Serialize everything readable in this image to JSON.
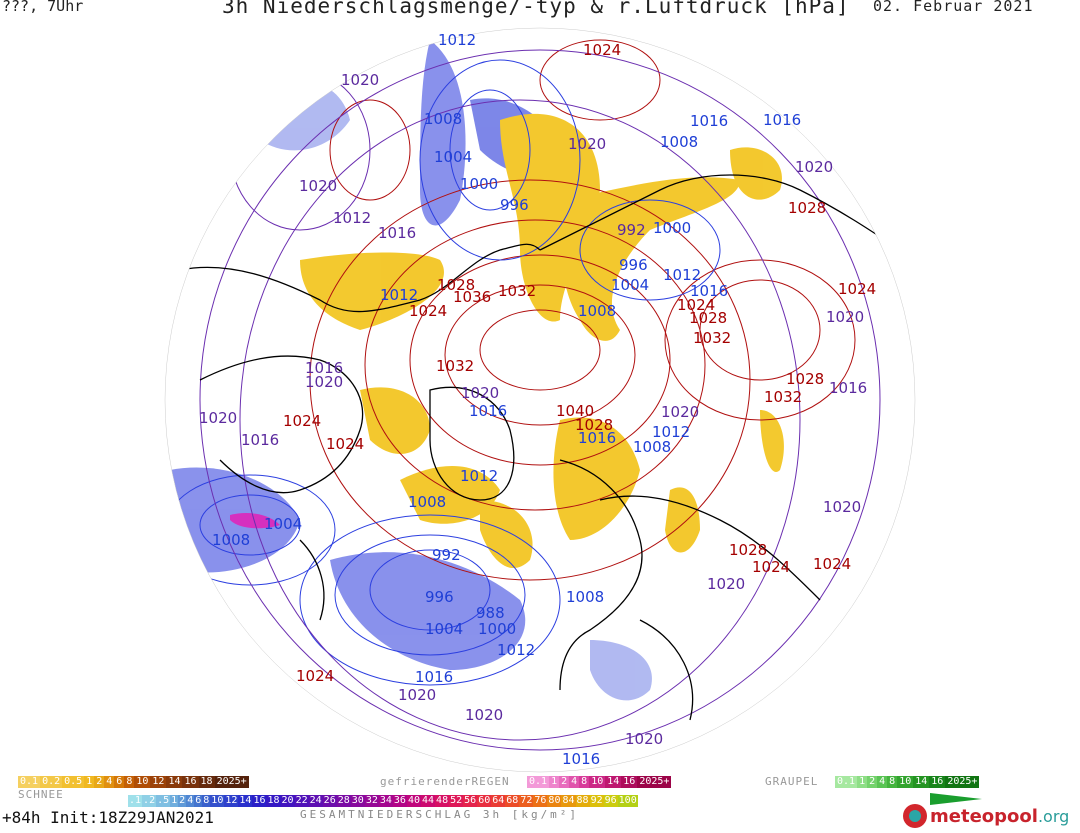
{
  "header": {
    "run_label": "???, 7Uhr",
    "title": "3h Niederschlagsmenge/-typ & r.Luftdruck [hPa]",
    "date": "02. Februar 2021"
  },
  "pressure_labels": [
    {
      "text": "1024",
      "kind": "high"
    },
    {
      "text": "1012",
      "kind": "low"
    },
    {
      "text": "1020",
      "kind": "mid"
    },
    {
      "text": "1008",
      "kind": "low"
    },
    {
      "text": "1016",
      "kind": "low"
    },
    {
      "text": "1016",
      "kind": "low"
    },
    {
      "text": "1004",
      "kind": "low"
    },
    {
      "text": "1020",
      "kind": "mid"
    },
    {
      "text": "1008",
      "kind": "low"
    },
    {
      "text": "1020",
      "kind": "mid"
    },
    {
      "text": "1000",
      "kind": "low"
    },
    {
      "text": "996",
      "kind": "low"
    },
    {
      "text": "1020",
      "kind": "mid"
    },
    {
      "text": "1028",
      "kind": "high"
    },
    {
      "text": "1012",
      "kind": "mid"
    },
    {
      "text": "1016",
      "kind": "mid"
    },
    {
      "text": "992",
      "kind": "mid"
    },
    {
      "text": "1000",
      "kind": "low"
    },
    {
      "text": "996",
      "kind": "low"
    },
    {
      "text": "1012",
      "kind": "low"
    },
    {
      "text": "1024",
      "kind": "high"
    },
    {
      "text": "1028",
      "kind": "high"
    },
    {
      "text": "1036",
      "kind": "high"
    },
    {
      "text": "1032",
      "kind": "high"
    },
    {
      "text": "1004",
      "kind": "low"
    },
    {
      "text": "1016",
      "kind": "low"
    },
    {
      "text": "1012",
      "kind": "low"
    },
    {
      "text": "1024",
      "kind": "high"
    },
    {
      "text": "1024",
      "kind": "high"
    },
    {
      "text": "1008",
      "kind": "low"
    },
    {
      "text": "1028",
      "kind": "high"
    },
    {
      "text": "1020",
      "kind": "mid"
    },
    {
      "text": "1032",
      "kind": "high"
    },
    {
      "text": "1016",
      "kind": "mid"
    },
    {
      "text": "1020",
      "kind": "mid"
    },
    {
      "text": "1032",
      "kind": "high"
    },
    {
      "text": "1028",
      "kind": "high"
    },
    {
      "text": "1032",
      "kind": "high"
    },
    {
      "text": "1016",
      "kind": "mid"
    },
    {
      "text": "1020",
      "kind": "mid"
    },
    {
      "text": "1016",
      "kind": "low"
    },
    {
      "text": "1020",
      "kind": "mid"
    },
    {
      "text": "1024",
      "kind": "high"
    },
    {
      "text": "1040",
      "kind": "high"
    },
    {
      "text": "1028",
      "kind": "high"
    },
    {
      "text": "1020",
      "kind": "mid"
    },
    {
      "text": "1016",
      "kind": "mid"
    },
    {
      "text": "1024",
      "kind": "high"
    },
    {
      "text": "1016",
      "kind": "low"
    },
    {
      "text": "1012",
      "kind": "low"
    },
    {
      "text": "1008",
      "kind": "low"
    },
    {
      "text": "1012",
      "kind": "low"
    },
    {
      "text": "1008",
      "kind": "low"
    },
    {
      "text": "1004",
      "kind": "low"
    },
    {
      "text": "1008",
      "kind": "low"
    },
    {
      "text": "1020",
      "kind": "mid"
    },
    {
      "text": "992",
      "kind": "low"
    },
    {
      "text": "1028",
      "kind": "high"
    },
    {
      "text": "1024",
      "kind": "high"
    },
    {
      "text": "1024",
      "kind": "high"
    },
    {
      "text": "996",
      "kind": "low"
    },
    {
      "text": "988",
      "kind": "low"
    },
    {
      "text": "1008",
      "kind": "low"
    },
    {
      "text": "1004",
      "kind": "low"
    },
    {
      "text": "1000",
      "kind": "low"
    },
    {
      "text": "1020",
      "kind": "mid"
    },
    {
      "text": "1012",
      "kind": "low"
    },
    {
      "text": "1024",
      "kind": "high"
    },
    {
      "text": "1016",
      "kind": "low"
    },
    {
      "text": "1020",
      "kind": "mid"
    },
    {
      "text": "1020",
      "kind": "mid"
    },
    {
      "text": "1016",
      "kind": "low"
    },
    {
      "text": "1020",
      "kind": "mid"
    }
  ],
  "legend": {
    "snow_label": "SCHNEE",
    "snow_values": [
      "0.1",
      "0.2",
      "0.5",
      "1",
      "2",
      "4",
      "6",
      "8",
      "10",
      "12",
      "14",
      "16",
      "18",
      "2025+"
    ],
    "rain_label": "gefrierenderREGEN",
    "rain_values": [
      "0.1",
      "1",
      "2",
      "4",
      "8",
      "10",
      "14",
      "16",
      "2025+"
    ],
    "graupel_label": "GRAUPEL",
    "graupel_values": [
      "0.1",
      "1",
      "2",
      "4",
      "8",
      "10",
      "14",
      "16",
      "2025+"
    ],
    "total_values": [
      ".1",
      ".2",
      ".5",
      "1",
      "2",
      "4",
      "6",
      "8",
      "10",
      "12",
      "14",
      "16",
      "18",
      "20",
      "22",
      "24",
      "26",
      "28",
      "30",
      "32",
      "34",
      "36",
      "40",
      "44",
      "48",
      "52",
      "56",
      "60",
      "64",
      "68",
      "72",
      "76",
      "80",
      "84",
      "88",
      "92",
      "96",
      "100"
    ],
    "total_caption": "GESAMTNIEDERSCHLAG 3h [kg/m²]"
  },
  "footer": {
    "forecast": "+84h Init:18Z29JAN2021",
    "brand_name": "meteopool",
    "brand_tld": ".org"
  },
  "colors": {
    "high": "#a40000",
    "low": "#1f3fd6",
    "mid": "#5b2a9e",
    "snow_precip": "#f2c318",
    "rain_precip": "#5a66e6",
    "coast": "#000000"
  }
}
